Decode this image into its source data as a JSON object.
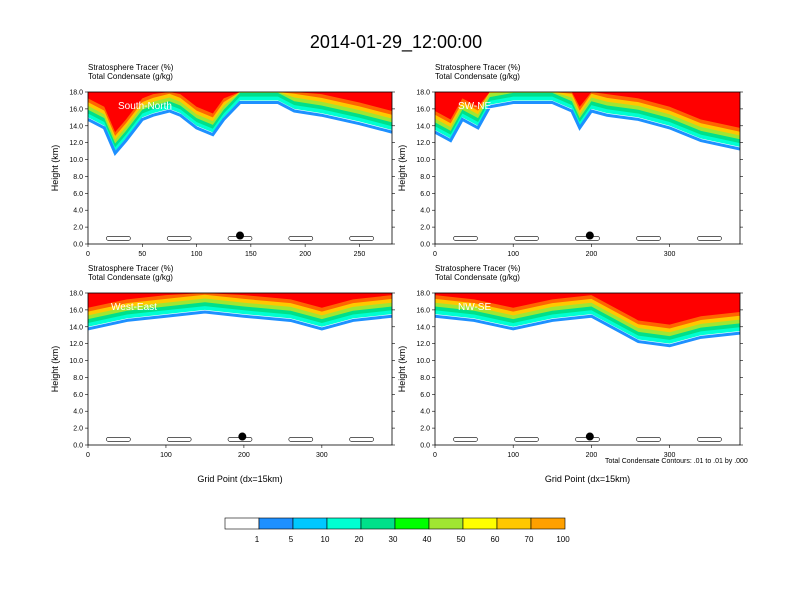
{
  "title": "2014-01-29_12:00:00",
  "contour_note": "Total Condensate Contours: .01 to .01 by .000",
  "panel_subtitle": {
    "line1": "Stratosphere Tracer   (%)",
    "line2": "Total Condensate   (g/kg)"
  },
  "ylabel": "Height (km)",
  "xlabel": "Grid Point (dx=15km)",
  "colorbar": {
    "labels": [
      "1",
      "5",
      "10",
      "20",
      "30",
      "40",
      "50",
      "60",
      "70",
      "100"
    ],
    "colors": [
      "#ffffff",
      "#1e90ff",
      "#00c8ff",
      "#00ffd2",
      "#00e08a",
      "#00ff00",
      "#a0e632",
      "#ffff00",
      "#ffc800",
      "#ffa000",
      "#ff6400",
      "#ff0000"
    ]
  },
  "chart_data": [
    {
      "type": "heatmap",
      "name": "South-North",
      "ylim": [
        0,
        18
      ],
      "xlim": [
        0,
        280
      ],
      "xticks": [
        0,
        50,
        100,
        150,
        200,
        250
      ],
      "yticks": [
        0,
        2,
        4,
        6,
        8,
        10,
        12,
        14,
        16,
        18
      ],
      "ytick_labels": [
        "0.0",
        "2.0",
        "4.0",
        "6.0",
        "8.0",
        "10.0",
        "12.0",
        "14.0",
        "16.0",
        "18.0"
      ],
      "tropopause_km": [
        [
          0,
          15.0
        ],
        [
          15,
          14.0
        ],
        [
          25,
          11.0
        ],
        [
          35,
          12.5
        ],
        [
          50,
          15.0
        ],
        [
          60,
          15.5
        ],
        [
          75,
          16.0
        ],
        [
          85,
          15.5
        ],
        [
          100,
          14.0
        ],
        [
          115,
          13.2
        ],
        [
          125,
          15.0
        ],
        [
          140,
          17.0
        ],
        [
          175,
          17.0
        ],
        [
          190,
          16.0
        ],
        [
          215,
          15.5
        ],
        [
          250,
          14.5
        ],
        [
          280,
          13.5
        ]
      ],
      "marker": [
        140,
        1.0
      ]
    },
    {
      "type": "heatmap",
      "name": "SW-NE",
      "ylim": [
        0,
        18
      ],
      "xlim": [
        0,
        390
      ],
      "xticks": [
        0,
        100,
        200,
        300
      ],
      "yticks": [
        0,
        2,
        4,
        6,
        8,
        10,
        12,
        14,
        16,
        18
      ],
      "ytick_labels": [
        "0.0",
        "2.0",
        "4.0",
        "6.0",
        "8.0",
        "10.0",
        "12.0",
        "14.0",
        "16.0",
        "18.0"
      ],
      "tropopause_km": [
        [
          0,
          13.5
        ],
        [
          20,
          12.5
        ],
        [
          35,
          15.0
        ],
        [
          55,
          14.0
        ],
        [
          70,
          16.5
        ],
        [
          100,
          17.0
        ],
        [
          150,
          17.0
        ],
        [
          175,
          16.0
        ],
        [
          185,
          14.0
        ],
        [
          200,
          16.0
        ],
        [
          220,
          15.5
        ],
        [
          260,
          15.0
        ],
        [
          300,
          14.0
        ],
        [
          340,
          12.5
        ],
        [
          390,
          11.5
        ]
      ],
      "marker": [
        198,
        1.0
      ]
    },
    {
      "type": "heatmap",
      "name": "West-East",
      "ylim": [
        0,
        18
      ],
      "xlim": [
        0,
        390
      ],
      "xticks": [
        0,
        100,
        200,
        300
      ],
      "yticks": [
        0,
        2,
        4,
        6,
        8,
        10,
        12,
        14,
        16,
        18
      ],
      "ytick_labels": [
        "0.0",
        "2.0",
        "4.0",
        "6.0",
        "8.0",
        "10.0",
        "12.0",
        "14.0",
        "16.0",
        "18.0"
      ],
      "tropopause_km": [
        [
          0,
          14.0
        ],
        [
          50,
          15.0
        ],
        [
          100,
          15.5
        ],
        [
          150,
          16.0
        ],
        [
          200,
          15.5
        ],
        [
          260,
          15.0
        ],
        [
          300,
          14.0
        ],
        [
          340,
          15.0
        ],
        [
          390,
          15.5
        ]
      ],
      "marker": [
        198,
        1.0
      ]
    },
    {
      "type": "heatmap",
      "name": "NW-SE",
      "ylim": [
        0,
        18
      ],
      "xlim": [
        0,
        390
      ],
      "xticks": [
        0,
        100,
        200,
        300
      ],
      "yticks": [
        0,
        2,
        4,
        6,
        8,
        10,
        12,
        14,
        16,
        18
      ],
      "ytick_labels": [
        "0.0",
        "2.0",
        "4.0",
        "6.0",
        "8.0",
        "10.0",
        "12.0",
        "14.0",
        "16.0",
        "18.0"
      ],
      "tropopause_km": [
        [
          0,
          15.5
        ],
        [
          50,
          15.0
        ],
        [
          100,
          14.0
        ],
        [
          150,
          15.0
        ],
        [
          200,
          15.5
        ],
        [
          240,
          13.5
        ],
        [
          260,
          12.5
        ],
        [
          300,
          12.0
        ],
        [
          340,
          13.0
        ],
        [
          390,
          13.5
        ]
      ],
      "marker": [
        198,
        1.0
      ]
    }
  ]
}
